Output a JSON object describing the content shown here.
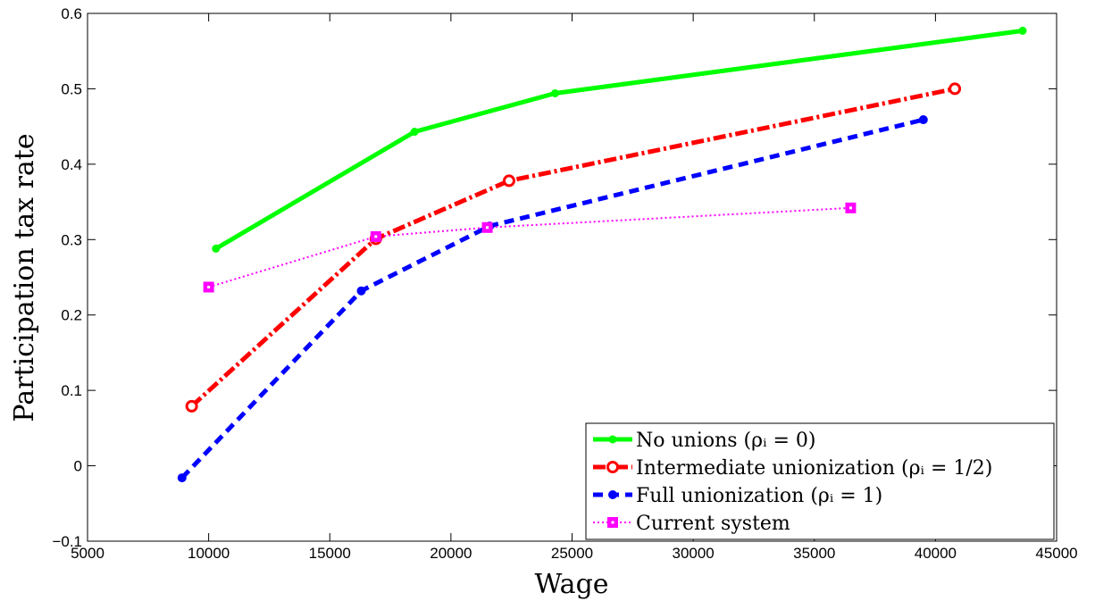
{
  "chart_data": {
    "type": "line",
    "xlabel": "Wage",
    "ylabel": "Participation tax rate",
    "xlim": [
      5000,
      45000
    ],
    "ylim": [
      -0.1,
      0.6
    ],
    "xticks": [
      5000,
      10000,
      15000,
      20000,
      25000,
      30000,
      35000,
      40000,
      45000
    ],
    "yticks": [
      -0.1,
      0,
      0.1,
      0.2,
      0.3,
      0.4,
      0.5,
      0.6
    ],
    "xtick_labels": [
      "5000",
      "10000",
      "15000",
      "20000",
      "25000",
      "30000",
      "35000",
      "40000",
      "45000"
    ],
    "ytick_labels": [
      "−0.1",
      "0",
      "0.1",
      "0.2",
      "0.3",
      "0.4",
      "0.5",
      "0.6"
    ],
    "grid": false,
    "legend_position": "bottom-right",
    "series": [
      {
        "name": "No unions (ρᵢ = 0)",
        "color": "#00ff00",
        "line_style": "solid",
        "marker": "point",
        "x": [
          10300,
          18500,
          24300,
          43600
        ],
        "y": [
          0.288,
          0.443,
          0.494,
          0.577
        ]
      },
      {
        "name": "Intermediate unionization (ρᵢ = 1/2)",
        "color": "#ff0000",
        "line_style": "dashdot",
        "marker": "circle",
        "x": [
          9300,
          16900,
          22400,
          40800
        ],
        "y": [
          0.079,
          0.301,
          0.378,
          0.5
        ]
      },
      {
        "name": "Full unionization (ρᵢ = 1)",
        "color": "#0000ff",
        "line_style": "dashed",
        "marker": "dot",
        "x": [
          8900,
          16300,
          21600,
          39500
        ],
        "y": [
          -0.016,
          0.232,
          0.318,
          0.459
        ]
      },
      {
        "name": "Current system",
        "color": "#ff00ff",
        "line_style": "dotted",
        "marker": "square",
        "x": [
          10000,
          16900,
          21500,
          36500
        ],
        "y": [
          0.237,
          0.304,
          0.316,
          0.342
        ]
      }
    ]
  }
}
